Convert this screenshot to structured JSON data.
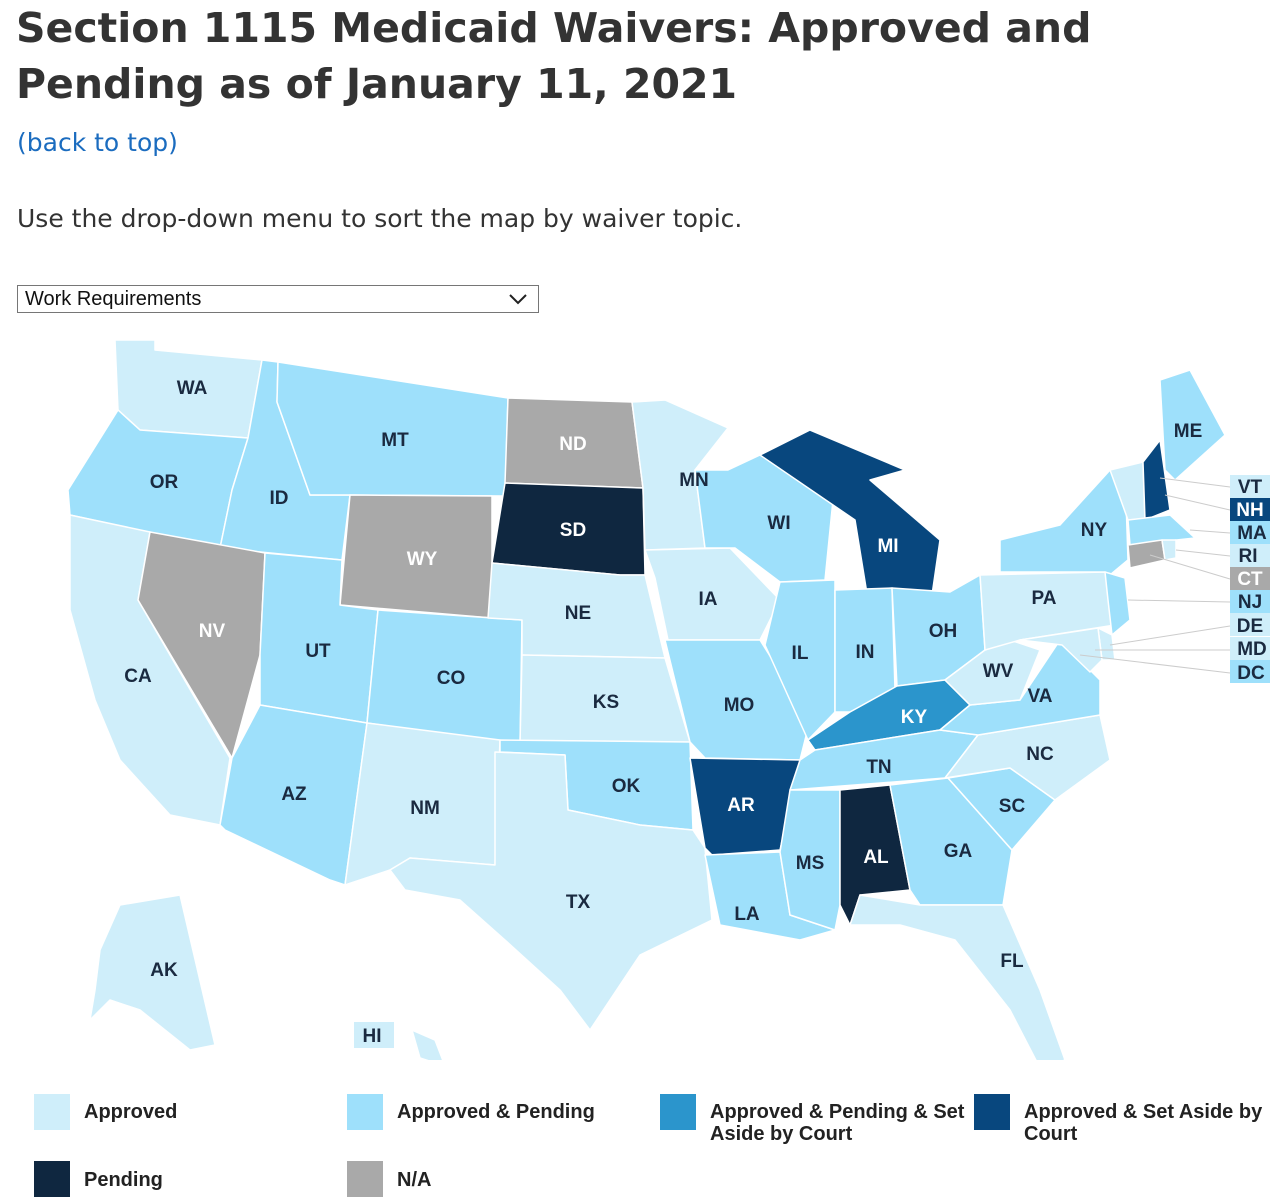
{
  "title": "Section 1115 Medicaid Waivers: Approved and Pending as of January 11, 2021",
  "back_link": "(back to top)",
  "instructions": "Use the drop-down menu to sort the map by waiver topic.",
  "dropdown": {
    "selected": "Work Requirements",
    "icon": "chevron-down-icon"
  },
  "colors": {
    "approved": "#cfeefa",
    "approved_pending": "#9ee0fb",
    "approved_pending_set_aside": "#2b95cc",
    "approved_set_aside": "#08477e",
    "pending": "#0f2740",
    "na": "#a9a9a9"
  },
  "legend": [
    {
      "key": "approved",
      "label": "Approved"
    },
    {
      "key": "approved_pending",
      "label": "Approved & Pending"
    },
    {
      "key": "approved_pending_set_aside",
      "label": "Approved & Pending & Set Aside by Court"
    },
    {
      "key": "approved_set_aside",
      "label": "Approved & Set Aside by Court"
    },
    {
      "key": "pending",
      "label": "Pending"
    },
    {
      "key": "na",
      "label": "N/A"
    }
  ],
  "states": [
    {
      "abbr": "WA",
      "status": "approved"
    },
    {
      "abbr": "OR",
      "status": "approved_pending"
    },
    {
      "abbr": "CA",
      "status": "approved"
    },
    {
      "abbr": "ID",
      "status": "approved_pending"
    },
    {
      "abbr": "NV",
      "status": "na"
    },
    {
      "abbr": "MT",
      "status": "approved_pending"
    },
    {
      "abbr": "WY",
      "status": "na"
    },
    {
      "abbr": "UT",
      "status": "approved_pending"
    },
    {
      "abbr": "AZ",
      "status": "approved_pending"
    },
    {
      "abbr": "CO",
      "status": "approved_pending"
    },
    {
      "abbr": "NM",
      "status": "approved"
    },
    {
      "abbr": "ND",
      "status": "na"
    },
    {
      "abbr": "SD",
      "status": "pending"
    },
    {
      "abbr": "NE",
      "status": "approved"
    },
    {
      "abbr": "KS",
      "status": "approved"
    },
    {
      "abbr": "OK",
      "status": "approved_pending"
    },
    {
      "abbr": "TX",
      "status": "approved"
    },
    {
      "abbr": "MN",
      "status": "approved"
    },
    {
      "abbr": "IA",
      "status": "approved"
    },
    {
      "abbr": "MO",
      "status": "approved_pending"
    },
    {
      "abbr": "AR",
      "status": "approved_set_aside"
    },
    {
      "abbr": "LA",
      "status": "approved_pending"
    },
    {
      "abbr": "WI",
      "status": "approved_pending"
    },
    {
      "abbr": "IL",
      "status": "approved_pending"
    },
    {
      "abbr": "MI",
      "status": "approved_set_aside"
    },
    {
      "abbr": "IN",
      "status": "approved_pending"
    },
    {
      "abbr": "OH",
      "status": "approved_pending"
    },
    {
      "abbr": "KY",
      "status": "approved_pending_set_aside"
    },
    {
      "abbr": "TN",
      "status": "approved_pending"
    },
    {
      "abbr": "MS",
      "status": "approved_pending"
    },
    {
      "abbr": "AL",
      "status": "pending"
    },
    {
      "abbr": "GA",
      "status": "approved_pending"
    },
    {
      "abbr": "FL",
      "status": "approved"
    },
    {
      "abbr": "SC",
      "status": "approved_pending"
    },
    {
      "abbr": "NC",
      "status": "approved"
    },
    {
      "abbr": "VA",
      "status": "approved_pending"
    },
    {
      "abbr": "WV",
      "status": "approved"
    },
    {
      "abbr": "PA",
      "status": "approved"
    },
    {
      "abbr": "NY",
      "status": "approved_pending"
    },
    {
      "abbr": "ME",
      "status": "approved_pending"
    },
    {
      "abbr": "AK",
      "status": "approved"
    },
    {
      "abbr": "HI",
      "status": "approved"
    },
    {
      "abbr": "VT",
      "status": "approved"
    },
    {
      "abbr": "NH",
      "status": "approved_set_aside"
    },
    {
      "abbr": "MA",
      "status": "approved_pending"
    },
    {
      "abbr": "RI",
      "status": "approved"
    },
    {
      "abbr": "CT",
      "status": "na"
    },
    {
      "abbr": "NJ",
      "status": "approved_pending"
    },
    {
      "abbr": "DE",
      "status": "approved"
    },
    {
      "abbr": "MD",
      "status": "approved"
    },
    {
      "abbr": "DC",
      "status": "approved_pending"
    }
  ]
}
